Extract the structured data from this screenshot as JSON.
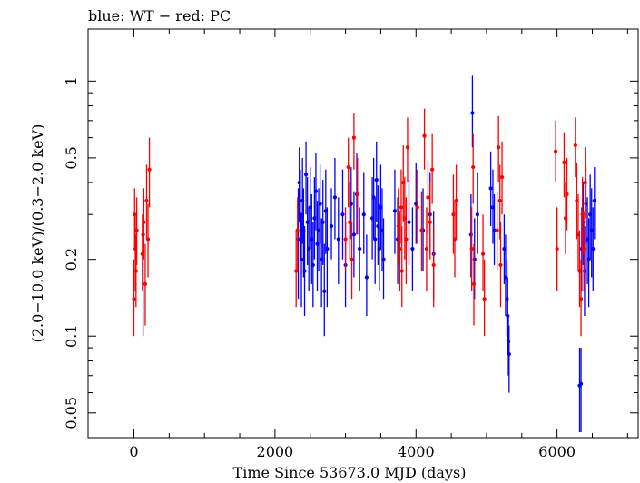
{
  "chart_data": {
    "type": "scatter",
    "title": "blue: WT − red: PC",
    "xlabel": "Time Since 53673.0 MJD (days)",
    "ylabel": "(2.0−10.0 keV)/(0.3−2.0 keV)",
    "xlim": [
      -650,
      7150
    ],
    "ylim": [
      0.04,
      1.6
    ],
    "y_scale": "log",
    "x_ticks": [
      0,
      2000,
      4000,
      6000
    ],
    "x_tick_labels": [
      "0",
      "2000",
      "4000",
      "6000"
    ],
    "y_ticks": [
      0.05,
      0.1,
      0.2,
      0.5,
      1
    ],
    "y_tick_labels": [
      "0.05",
      "0.1",
      "0.2",
      "0.5",
      "1"
    ],
    "grid": false,
    "legend": "none",
    "colors": {
      "WT": "#0000ff",
      "PC": "#ff0000",
      "axes": "#000000"
    },
    "series": [
      {
        "name": "WT",
        "color": "#0000ff",
        "points": [
          [
            130,
            0.25,
            0.1,
            0.38
          ],
          [
            2330,
            0.24,
            0.14,
            0.38
          ],
          [
            2345,
            0.4,
            0.28,
            0.55
          ],
          [
            2360,
            0.3,
            0.2,
            0.45
          ],
          [
            2375,
            0.2,
            0.13,
            0.3
          ],
          [
            2390,
            0.34,
            0.23,
            0.5
          ],
          [
            2405,
            0.26,
            0.17,
            0.38
          ],
          [
            2420,
            0.18,
            0.12,
            0.27
          ],
          [
            2440,
            0.43,
            0.3,
            0.58
          ],
          [
            2460,
            0.28,
            0.19,
            0.42
          ],
          [
            2480,
            0.22,
            0.15,
            0.32
          ],
          [
            2500,
            0.32,
            0.22,
            0.46
          ],
          [
            2520,
            0.24,
            0.16,
            0.36
          ],
          [
            2540,
            0.19,
            0.13,
            0.28
          ],
          [
            2560,
            0.29,
            0.2,
            0.42
          ],
          [
            2580,
            0.37,
            0.26,
            0.52
          ],
          [
            2600,
            0.23,
            0.15,
            0.34
          ],
          [
            2620,
            0.26,
            0.18,
            0.38
          ],
          [
            2640,
            0.33,
            0.23,
            0.47
          ],
          [
            2660,
            0.2,
            0.13,
            0.29
          ],
          [
            2680,
            0.28,
            0.19,
            0.41
          ],
          [
            2700,
            0.15,
            0.1,
            0.23
          ],
          [
            2720,
            0.31,
            0.21,
            0.45
          ],
          [
            2740,
            0.22,
            0.13,
            0.32
          ],
          [
            2800,
            0.27,
            0.2,
            0.38
          ],
          [
            2850,
            0.35,
            0.24,
            0.5
          ],
          [
            2900,
            0.24,
            0.16,
            0.35
          ],
          [
            2960,
            0.3,
            0.2,
            0.45
          ],
          [
            3000,
            0.19,
            0.13,
            0.28
          ],
          [
            3080,
            0.33,
            0.24,
            0.46
          ],
          [
            3120,
            0.25,
            0.17,
            0.37
          ],
          [
            3160,
            0.36,
            0.25,
            0.52
          ],
          [
            3200,
            0.22,
            0.15,
            0.32
          ],
          [
            3260,
            0.3,
            0.21,
            0.44
          ],
          [
            3300,
            0.17,
            0.12,
            0.25
          ],
          [
            3380,
            0.29,
            0.2,
            0.42
          ],
          [
            3400,
            0.35,
            0.24,
            0.5
          ],
          [
            3420,
            0.24,
            0.16,
            0.35
          ],
          [
            3440,
            0.41,
            0.28,
            0.58
          ],
          [
            3460,
            0.27,
            0.19,
            0.39
          ],
          [
            3480,
            0.22,
            0.15,
            0.33
          ],
          [
            3500,
            0.32,
            0.22,
            0.47
          ],
          [
            3520,
            0.26,
            0.18,
            0.38
          ],
          [
            3540,
            0.2,
            0.14,
            0.29
          ],
          [
            3700,
            0.31,
            0.21,
            0.45
          ],
          [
            3740,
            0.24,
            0.16,
            0.35
          ],
          [
            3900,
            0.28,
            0.19,
            0.41
          ],
          [
            3950,
            0.22,
            0.15,
            0.32
          ],
          [
            4000,
            0.33,
            0.23,
            0.48
          ],
          [
            4100,
            0.26,
            0.18,
            0.38
          ],
          [
            4200,
            0.3,
            0.21,
            0.44
          ],
          [
            4250,
            0.21,
            0.14,
            0.31
          ],
          [
            4780,
            0.25,
            0.17,
            0.36
          ],
          [
            4800,
            0.75,
            0.55,
            1.05
          ],
          [
            4830,
            0.2,
            0.14,
            0.29
          ],
          [
            4870,
            0.3,
            0.21,
            0.44
          ],
          [
            5060,
            0.38,
            0.27,
            0.53
          ],
          [
            5090,
            0.32,
            0.23,
            0.45
          ],
          [
            5110,
            0.26,
            0.19,
            0.36
          ],
          [
            5250,
            0.22,
            0.16,
            0.3
          ],
          [
            5270,
            0.17,
            0.12,
            0.25
          ],
          [
            5290,
            0.14,
            0.1,
            0.2
          ],
          [
            5300,
            0.12,
            0.085,
            0.17
          ],
          [
            5310,
            0.095,
            0.07,
            0.12
          ],
          [
            5320,
            0.085,
            0.06,
            0.11
          ],
          [
            6320,
            0.064,
            0.042,
            0.09
          ],
          [
            6340,
            0.065,
            0.042,
            0.09
          ],
          [
            6350,
            0.22,
            0.15,
            0.32
          ],
          [
            6370,
            0.28,
            0.19,
            0.4
          ],
          [
            6390,
            0.18,
            0.12,
            0.27
          ],
          [
            6410,
            0.33,
            0.23,
            0.46
          ],
          [
            6430,
            0.24,
            0.16,
            0.35
          ],
          [
            6450,
            0.2,
            0.13,
            0.29
          ],
          [
            6470,
            0.3,
            0.2,
            0.43
          ],
          [
            6490,
            0.26,
            0.17,
            0.38
          ],
          [
            6510,
            0.22,
            0.15,
            0.32
          ],
          [
            6530,
            0.34,
            0.24,
            0.46
          ]
        ]
      },
      {
        "name": "PC",
        "color": "#ff0000",
        "points": [
          [
            0,
            0.14,
            0.1,
            0.2
          ],
          [
            10,
            0.3,
            0.22,
            0.38
          ],
          [
            20,
            0.22,
            0.15,
            0.3
          ],
          [
            30,
            0.18,
            0.13,
            0.25
          ],
          [
            40,
            0.26,
            0.19,
            0.35
          ],
          [
            120,
            0.21,
            0.15,
            0.3
          ],
          [
            140,
            0.28,
            0.2,
            0.38
          ],
          [
            160,
            0.16,
            0.11,
            0.23
          ],
          [
            180,
            0.34,
            0.24,
            0.47
          ],
          [
            200,
            0.24,
            0.17,
            0.33
          ],
          [
            220,
            0.45,
            0.32,
            0.6
          ],
          [
            2300,
            0.18,
            0.13,
            0.26
          ],
          [
            2320,
            0.26,
            0.18,
            0.35
          ],
          [
            3000,
            0.24,
            0.18,
            0.32
          ],
          [
            3040,
            0.46,
            0.32,
            0.6
          ],
          [
            3060,
            0.28,
            0.2,
            0.4
          ],
          [
            3090,
            0.2,
            0.14,
            0.28
          ],
          [
            3120,
            0.6,
            0.45,
            0.75
          ],
          [
            3170,
            0.36,
            0.25,
            0.5
          ],
          [
            3750,
            0.27,
            0.19,
            0.38
          ],
          [
            3770,
            0.22,
            0.15,
            0.31
          ],
          [
            3790,
            0.32,
            0.23,
            0.45
          ],
          [
            3800,
            0.18,
            0.13,
            0.27
          ],
          [
            3820,
            0.4,
            0.28,
            0.56
          ],
          [
            3840,
            0.29,
            0.2,
            0.42
          ],
          [
            3860,
            0.24,
            0.16,
            0.35
          ],
          [
            3880,
            0.55,
            0.4,
            0.72
          ],
          [
            4020,
            0.32,
            0.23,
            0.45
          ],
          [
            4080,
            0.26,
            0.18,
            0.37
          ],
          [
            4120,
            0.61,
            0.45,
            0.78
          ],
          [
            4150,
            0.22,
            0.15,
            0.32
          ],
          [
            4170,
            0.35,
            0.25,
            0.49
          ],
          [
            4200,
            0.28,
            0.2,
            0.4
          ],
          [
            4230,
            0.45,
            0.33,
            0.62
          ],
          [
            4250,
            0.19,
            0.13,
            0.27
          ],
          [
            4530,
            0.3,
            0.21,
            0.43
          ],
          [
            4550,
            0.24,
            0.17,
            0.34
          ],
          [
            4570,
            0.34,
            0.24,
            0.47
          ],
          [
            4790,
            0.22,
            0.15,
            0.32
          ],
          [
            4810,
            0.46,
            0.33,
            0.62
          ],
          [
            4820,
            0.16,
            0.11,
            0.23
          ],
          [
            4950,
            0.21,
            0.15,
            0.3
          ],
          [
            4970,
            0.14,
            0.1,
            0.2
          ],
          [
            5150,
            0.26,
            0.18,
            0.37
          ],
          [
            5170,
            0.55,
            0.4,
            0.73
          ],
          [
            5190,
            0.34,
            0.24,
            0.47
          ],
          [
            5200,
            0.19,
            0.13,
            0.28
          ],
          [
            5220,
            0.42,
            0.3,
            0.58
          ],
          [
            5980,
            0.53,
            0.4,
            0.7
          ],
          [
            6000,
            0.22,
            0.15,
            0.32
          ],
          [
            6100,
            0.48,
            0.35,
            0.63
          ],
          [
            6120,
            0.29,
            0.21,
            0.4
          ],
          [
            6140,
            0.36,
            0.26,
            0.5
          ],
          [
            6260,
            0.56,
            0.42,
            0.72
          ],
          [
            6280,
            0.34,
            0.24,
            0.48
          ],
          [
            6300,
            0.25,
            0.18,
            0.36
          ],
          [
            6320,
            0.18,
            0.13,
            0.26
          ],
          [
            6340,
            0.14,
            0.1,
            0.2
          ],
          [
            6360,
            0.3,
            0.21,
            0.42
          ],
          [
            6380,
            0.22,
            0.15,
            0.31
          ],
          [
            6400,
            0.4,
            0.29,
            0.55
          ]
        ]
      }
    ]
  }
}
